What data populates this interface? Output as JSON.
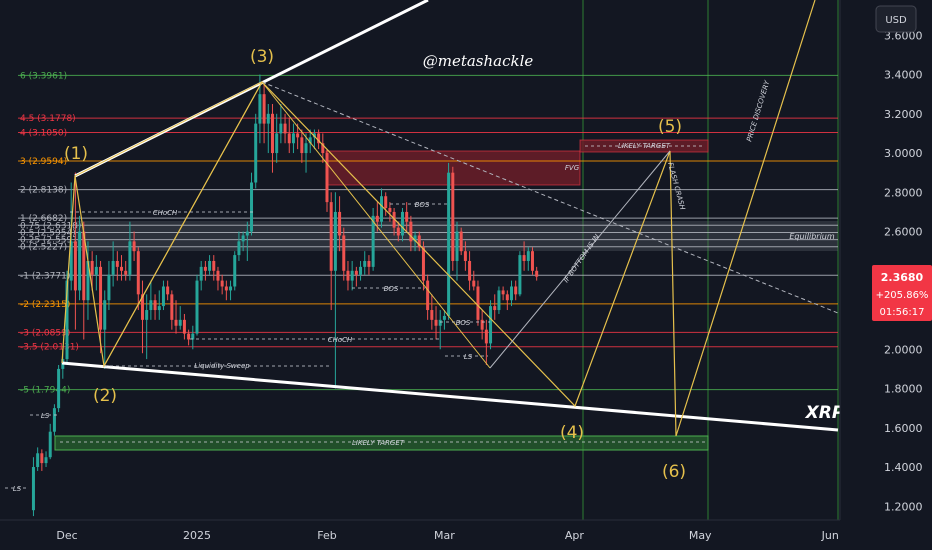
{
  "currency_button": "USD",
  "ticker": "XRP",
  "handle": "@metashackle",
  "price_tag": {
    "price": "2.3680",
    "change": "+205.86%",
    "countdown": "01:56:17"
  },
  "colors": {
    "background": "#131722",
    "bull": "#26a69a",
    "bear": "#ef5350",
    "fib_red": "#f23645",
    "fib_green": "#4caf50",
    "fib_white": "#b2b5be",
    "fib_orange": "#ff9800",
    "wave": "#e5c04c",
    "fvg_zone": "#6b1d28",
    "target_zone_green": "#2e7d32",
    "equilibrium_zone": "#5d606b"
  },
  "chart_data": {
    "type": "candlestick",
    "y_axis": {
      "min": 1.13,
      "max": 3.78,
      "ticks": [
        "1.2000",
        "1.4000",
        "1.6000",
        "1.8000",
        "2.0000",
        "2.2000",
        "2.4000",
        "2.6000",
        "2.8000",
        "3.0000",
        "3.2000",
        "3.4000",
        "3.6000"
      ]
    },
    "x_axis": {
      "labels": [
        "Dec",
        "2025",
        "Feb",
        "Mar",
        "Apr",
        "May",
        "Jun"
      ],
      "dates": [
        "2024-12-01",
        "2025-01-01",
        "2025-02-01",
        "2025-03-01",
        "2025-04-01",
        "2025-05-01",
        "2025-06-01"
      ]
    },
    "fib_levels": [
      {
        "label": "6 (3.3961)",
        "value": 3.3961,
        "color": "fib_green"
      },
      {
        "label": "4.5 (3.1778)",
        "value": 3.1778,
        "color": "fib_red"
      },
      {
        "label": "4 (3.1050)",
        "value": 3.105,
        "color": "fib_red"
      },
      {
        "label": "3 (2.9594)",
        "value": 2.9594,
        "color": "fib_orange"
      },
      {
        "label": "2 (2.8138)",
        "value": 2.8138,
        "color": "fib_white"
      },
      {
        "label": "1 (2.6682)",
        "value": 2.6682,
        "color": "fib_white"
      },
      {
        "label": "0.75 (2.6318)",
        "value": 2.6318,
        "color": "fib_white"
      },
      {
        "label": "0.5 (2.5954)",
        "value": 2.5954,
        "color": "fib_white"
      },
      {
        "label": "0.25 (2.5591)",
        "value": 2.5591,
        "color": "fib_white"
      },
      {
        "label": "0 (2.5227)",
        "value": 2.5227,
        "color": "fib_white"
      },
      {
        "label": "-1 (2.3771)",
        "value": 2.3771,
        "color": "fib_white"
      },
      {
        "label": "-2 (2.2315)",
        "value": 2.2315,
        "color": "fib_orange"
      },
      {
        "label": "-3 (2.0859)",
        "value": 2.0859,
        "color": "fib_red"
      },
      {
        "label": "-3.5 (2.0131)",
        "value": 2.0131,
        "color": "fib_red"
      },
      {
        "label": "-5 (1.7944)",
        "value": 1.7944,
        "color": "fib_green"
      }
    ],
    "wave_labels": [
      "(1)",
      "(2)",
      "(3)",
      "(4)",
      "(5)",
      "(6)"
    ],
    "annotations": [
      "CHoCH",
      "CHoCH",
      "Liquidity Sweep",
      "BOS",
      "BOS",
      "BOS",
      "LS",
      "LS",
      "LS",
      "FVG",
      "LIKELY TARGET",
      "LIKELY TARGET",
      "Equilibrium",
      "IF BOTTOM IS IN",
      "FLASH CRASH",
      "PRICE DISCOVERY"
    ],
    "candles": [
      {
        "d": "2024-11-23",
        "o": 1.18,
        "h": 1.45,
        "l": 1.15,
        "c": 1.4
      },
      {
        "d": "2024-11-24",
        "o": 1.4,
        "h": 1.5,
        "l": 1.38,
        "c": 1.47
      },
      {
        "d": "2024-11-25",
        "o": 1.47,
        "h": 1.49,
        "l": 1.38,
        "c": 1.42
      },
      {
        "d": "2024-11-26",
        "o": 1.42,
        "h": 1.48,
        "l": 1.4,
        "c": 1.45
      },
      {
        "d": "2024-11-27",
        "o": 1.45,
        "h": 1.62,
        "l": 1.44,
        "c": 1.58
      },
      {
        "d": "2024-11-28",
        "o": 1.58,
        "h": 1.72,
        "l": 1.56,
        "c": 1.7
      },
      {
        "d": "2024-11-29",
        "o": 1.7,
        "h": 1.92,
        "l": 1.68,
        "c": 1.9
      },
      {
        "d": "2024-11-30",
        "o": 1.9,
        "h": 2.0,
        "l": 1.85,
        "c": 1.95
      },
      {
        "d": "2024-12-01",
        "o": 1.95,
        "h": 2.4,
        "l": 1.92,
        "c": 2.35
      },
      {
        "d": "2024-12-02",
        "o": 2.35,
        "h": 2.85,
        "l": 2.3,
        "c": 2.55
      },
      {
        "d": "2024-12-03",
        "o": 2.55,
        "h": 2.9,
        "l": 2.1,
        "c": 2.3
      },
      {
        "d": "2024-12-04",
        "o": 2.3,
        "h": 2.68,
        "l": 2.25,
        "c": 2.6
      },
      {
        "d": "2024-12-05",
        "o": 2.6,
        "h": 2.65,
        "l": 2.05,
        "c": 2.25
      },
      {
        "d": "2024-12-06",
        "o": 2.25,
        "h": 2.55,
        "l": 2.15,
        "c": 2.45
      },
      {
        "d": "2024-12-07",
        "o": 2.45,
        "h": 2.5,
        "l": 2.3,
        "c": 2.38
      },
      {
        "d": "2024-12-08",
        "o": 2.38,
        "h": 2.48,
        "l": 2.3,
        "c": 2.42
      },
      {
        "d": "2024-12-09",
        "o": 2.42,
        "h": 2.45,
        "l": 1.98,
        "c": 2.1
      },
      {
        "d": "2024-12-10",
        "o": 2.1,
        "h": 2.3,
        "l": 1.9,
        "c": 2.25
      },
      {
        "d": "2024-12-11",
        "o": 2.25,
        "h": 2.45,
        "l": 2.2,
        "c": 2.38
      },
      {
        "d": "2024-12-12",
        "o": 2.38,
        "h": 2.55,
        "l": 2.32,
        "c": 2.45
      },
      {
        "d": "2024-12-13",
        "o": 2.45,
        "h": 2.5,
        "l": 2.35,
        "c": 2.42
      },
      {
        "d": "2024-12-14",
        "o": 2.42,
        "h": 2.48,
        "l": 2.35,
        "c": 2.4
      },
      {
        "d": "2024-12-15",
        "o": 2.4,
        "h": 2.45,
        "l": 2.35,
        "c": 2.38
      },
      {
        "d": "2024-12-16",
        "o": 2.38,
        "h": 2.65,
        "l": 2.35,
        "c": 2.55
      },
      {
        "d": "2024-12-17",
        "o": 2.55,
        "h": 2.6,
        "l": 2.45,
        "c": 2.5
      },
      {
        "d": "2024-12-18",
        "o": 2.5,
        "h": 2.52,
        "l": 2.2,
        "c": 2.28
      },
      {
        "d": "2024-12-19",
        "o": 2.28,
        "h": 2.35,
        "l": 1.98,
        "c": 2.15
      },
      {
        "d": "2024-12-20",
        "o": 2.15,
        "h": 2.28,
        "l": 1.95,
        "c": 2.2
      },
      {
        "d": "2024-12-21",
        "o": 2.2,
        "h": 2.35,
        "l": 2.15,
        "c": 2.25
      },
      {
        "d": "2024-12-22",
        "o": 2.25,
        "h": 2.28,
        "l": 2.15,
        "c": 2.2
      },
      {
        "d": "2024-12-23",
        "o": 2.2,
        "h": 2.3,
        "l": 2.15,
        "c": 2.22
      },
      {
        "d": "2024-12-24",
        "o": 2.22,
        "h": 2.35,
        "l": 2.2,
        "c": 2.32
      },
      {
        "d": "2024-12-25",
        "o": 2.32,
        "h": 2.35,
        "l": 2.25,
        "c": 2.28
      },
      {
        "d": "2024-12-26",
        "o": 2.28,
        "h": 2.3,
        "l": 2.1,
        "c": 2.15
      },
      {
        "d": "2024-12-27",
        "o": 2.15,
        "h": 2.25,
        "l": 2.08,
        "c": 2.12
      },
      {
        "d": "2024-12-28",
        "o": 2.12,
        "h": 2.22,
        "l": 2.1,
        "c": 2.15
      },
      {
        "d": "2024-12-29",
        "o": 2.15,
        "h": 2.18,
        "l": 2.05,
        "c": 2.08
      },
      {
        "d": "2024-12-30",
        "o": 2.08,
        "h": 2.1,
        "l": 2.02,
        "c": 2.05
      },
      {
        "d": "2024-12-31",
        "o": 2.05,
        "h": 2.12,
        "l": 2.0,
        "c": 2.08
      },
      {
        "d": "2025-01-01",
        "o": 2.08,
        "h": 2.38,
        "l": 2.07,
        "c": 2.35
      },
      {
        "d": "2025-01-02",
        "o": 2.35,
        "h": 2.45,
        "l": 2.3,
        "c": 2.42
      },
      {
        "d": "2025-01-03",
        "o": 2.42,
        "h": 2.45,
        "l": 2.35,
        "c": 2.4
      },
      {
        "d": "2025-01-04",
        "o": 2.4,
        "h": 2.48,
        "l": 2.38,
        "c": 2.45
      },
      {
        "d": "2025-01-05",
        "o": 2.45,
        "h": 2.48,
        "l": 2.35,
        "c": 2.4
      },
      {
        "d": "2025-01-06",
        "o": 2.4,
        "h": 2.42,
        "l": 2.3,
        "c": 2.35
      },
      {
        "d": "2025-01-07",
        "o": 2.35,
        "h": 2.38,
        "l": 2.28,
        "c": 2.32
      },
      {
        "d": "2025-01-08",
        "o": 2.32,
        "h": 2.35,
        "l": 2.25,
        "c": 2.3
      },
      {
        "d": "2025-01-09",
        "o": 2.3,
        "h": 2.35,
        "l": 2.25,
        "c": 2.32
      },
      {
        "d": "2025-01-10",
        "o": 2.32,
        "h": 2.5,
        "l": 2.3,
        "c": 2.48
      },
      {
        "d": "2025-01-11",
        "o": 2.48,
        "h": 2.6,
        "l": 2.45,
        "c": 2.55
      },
      {
        "d": "2025-01-12",
        "o": 2.55,
        "h": 2.6,
        "l": 2.5,
        "c": 2.58
      },
      {
        "d": "2025-01-13",
        "o": 2.58,
        "h": 2.65,
        "l": 2.45,
        "c": 2.6
      },
      {
        "d": "2025-01-14",
        "o": 2.6,
        "h": 2.9,
        "l": 2.58,
        "c": 2.85
      },
      {
        "d": "2025-01-15",
        "o": 2.85,
        "h": 3.2,
        "l": 2.82,
        "c": 3.15
      },
      {
        "d": "2025-01-16",
        "o": 3.15,
        "h": 3.4,
        "l": 3.05,
        "c": 3.3
      },
      {
        "d": "2025-01-17",
        "o": 3.3,
        "h": 3.35,
        "l": 3.05,
        "c": 3.15
      },
      {
        "d": "2025-01-18",
        "o": 3.15,
        "h": 3.25,
        "l": 3.0,
        "c": 3.2
      },
      {
        "d": "2025-01-19",
        "o": 3.2,
        "h": 3.25,
        "l": 2.9,
        "c": 3.0
      },
      {
        "d": "2025-01-20",
        "o": 3.0,
        "h": 3.2,
        "l": 2.95,
        "c": 3.1
      },
      {
        "d": "2025-01-21",
        "o": 3.1,
        "h": 3.25,
        "l": 3.05,
        "c": 3.15
      },
      {
        "d": "2025-01-22",
        "o": 3.15,
        "h": 3.2,
        "l": 3.05,
        "c": 3.1
      },
      {
        "d": "2025-01-23",
        "o": 3.1,
        "h": 3.18,
        "l": 3.0,
        "c": 3.05
      },
      {
        "d": "2025-01-24",
        "o": 3.05,
        "h": 3.15,
        "l": 3.0,
        "c": 3.1
      },
      {
        "d": "2025-01-25",
        "o": 3.1,
        "h": 3.15,
        "l": 3.02,
        "c": 3.08
      },
      {
        "d": "2025-01-26",
        "o": 3.08,
        "h": 3.12,
        "l": 2.95,
        "c": 3.0
      },
      {
        "d": "2025-01-27",
        "o": 3.0,
        "h": 3.1,
        "l": 2.9,
        "c": 3.05
      },
      {
        "d": "2025-01-28",
        "o": 3.05,
        "h": 3.12,
        "l": 3.0,
        "c": 3.08
      },
      {
        "d": "2025-01-29",
        "o": 3.08,
        "h": 3.12,
        "l": 3.02,
        "c": 3.1
      },
      {
        "d": "2025-01-30",
        "o": 3.1,
        "h": 3.12,
        "l": 3.02,
        "c": 3.05
      },
      {
        "d": "2025-01-31",
        "o": 3.05,
        "h": 3.1,
        "l": 2.95,
        "c": 3.0
      },
      {
        "d": "2025-02-01",
        "o": 3.0,
        "h": 3.02,
        "l": 2.7,
        "c": 2.75
      },
      {
        "d": "2025-02-02",
        "o": 2.75,
        "h": 2.8,
        "l": 2.2,
        "c": 2.4
      },
      {
        "d": "2025-02-03",
        "o": 2.4,
        "h": 2.8,
        "l": 1.8,
        "c": 2.7
      },
      {
        "d": "2025-02-04",
        "o": 2.7,
        "h": 2.78,
        "l": 2.5,
        "c": 2.58
      },
      {
        "d": "2025-02-05",
        "o": 2.58,
        "h": 2.62,
        "l": 2.35,
        "c": 2.4
      },
      {
        "d": "2025-02-06",
        "o": 2.4,
        "h": 2.45,
        "l": 2.3,
        "c": 2.35
      },
      {
        "d": "2025-02-07",
        "o": 2.35,
        "h": 2.45,
        "l": 2.3,
        "c": 2.4
      },
      {
        "d": "2025-02-08",
        "o": 2.4,
        "h": 2.42,
        "l": 2.32,
        "c": 2.38
      },
      {
        "d": "2025-02-09",
        "o": 2.38,
        "h": 2.45,
        "l": 2.35,
        "c": 2.42
      },
      {
        "d": "2025-02-10",
        "o": 2.42,
        "h": 2.5,
        "l": 2.38,
        "c": 2.45
      },
      {
        "d": "2025-02-11",
        "o": 2.45,
        "h": 2.48,
        "l": 2.38,
        "c": 2.42
      },
      {
        "d": "2025-02-12",
        "o": 2.42,
        "h": 2.72,
        "l": 2.4,
        "c": 2.68
      },
      {
        "d": "2025-02-13",
        "o": 2.68,
        "h": 2.75,
        "l": 2.6,
        "c": 2.65
      },
      {
        "d": "2025-02-14",
        "o": 2.65,
        "h": 2.82,
        "l": 2.62,
        "c": 2.78
      },
      {
        "d": "2025-02-15",
        "o": 2.78,
        "h": 2.8,
        "l": 2.68,
        "c": 2.72
      },
      {
        "d": "2025-02-16",
        "o": 2.72,
        "h": 2.75,
        "l": 2.65,
        "c": 2.7
      },
      {
        "d": "2025-02-17",
        "o": 2.7,
        "h": 2.72,
        "l": 2.58,
        "c": 2.62
      },
      {
        "d": "2025-02-18",
        "o": 2.62,
        "h": 2.65,
        "l": 2.55,
        "c": 2.58
      },
      {
        "d": "2025-02-19",
        "o": 2.58,
        "h": 2.72,
        "l": 2.55,
        "c": 2.7
      },
      {
        "d": "2025-02-20",
        "o": 2.7,
        "h": 2.75,
        "l": 2.6,
        "c": 2.65
      },
      {
        "d": "2025-02-21",
        "o": 2.65,
        "h": 2.68,
        "l": 2.5,
        "c": 2.55
      },
      {
        "d": "2025-02-22",
        "o": 2.55,
        "h": 2.6,
        "l": 2.5,
        "c": 2.58
      },
      {
        "d": "2025-02-23",
        "o": 2.58,
        "h": 2.6,
        "l": 2.5,
        "c": 2.52
      },
      {
        "d": "2025-02-24",
        "o": 2.52,
        "h": 2.55,
        "l": 2.3,
        "c": 2.35
      },
      {
        "d": "2025-02-25",
        "o": 2.35,
        "h": 2.38,
        "l": 2.15,
        "c": 2.2
      },
      {
        "d": "2025-02-26",
        "o": 2.2,
        "h": 2.28,
        "l": 2.1,
        "c": 2.15
      },
      {
        "d": "2025-02-27",
        "o": 2.15,
        "h": 2.22,
        "l": 2.05,
        "c": 2.12
      },
      {
        "d": "2025-02-28",
        "o": 2.12,
        "h": 2.2,
        "l": 2.0,
        "c": 2.15
      },
      {
        "d": "2025-03-01",
        "o": 2.15,
        "h": 2.2,
        "l": 2.1,
        "c": 2.17
      },
      {
        "d": "2025-03-02",
        "o": 2.17,
        "h": 2.95,
        "l": 2.15,
        "c": 2.9
      },
      {
        "d": "2025-03-03",
        "o": 2.9,
        "h": 2.93,
        "l": 2.4,
        "c": 2.45
      },
      {
        "d": "2025-03-04",
        "o": 2.45,
        "h": 2.65,
        "l": 2.35,
        "c": 2.6
      },
      {
        "d": "2025-03-05",
        "o": 2.6,
        "h": 2.62,
        "l": 2.48,
        "c": 2.5
      },
      {
        "d": "2025-03-06",
        "o": 2.5,
        "h": 2.55,
        "l": 2.4,
        "c": 2.45
      },
      {
        "d": "2025-03-07",
        "o": 2.45,
        "h": 2.5,
        "l": 2.3,
        "c": 2.35
      },
      {
        "d": "2025-03-08",
        "o": 2.35,
        "h": 2.4,
        "l": 2.3,
        "c": 2.32
      },
      {
        "d": "2025-03-09",
        "o": 2.32,
        "h": 2.35,
        "l": 2.12,
        "c": 2.15
      },
      {
        "d": "2025-03-10",
        "o": 2.15,
        "h": 2.2,
        "l": 2.05,
        "c": 2.1
      },
      {
        "d": "2025-03-11",
        "o": 2.1,
        "h": 2.15,
        "l": 1.92,
        "c": 2.03
      },
      {
        "d": "2025-03-12",
        "o": 2.03,
        "h": 2.25,
        "l": 2.0,
        "c": 2.22
      },
      {
        "d": "2025-03-13",
        "o": 2.22,
        "h": 2.28,
        "l": 2.15,
        "c": 2.2
      },
      {
        "d": "2025-03-14",
        "o": 2.2,
        "h": 2.32,
        "l": 2.18,
        "c": 2.3
      },
      {
        "d": "2025-03-15",
        "o": 2.3,
        "h": 2.32,
        "l": 2.25,
        "c": 2.28
      },
      {
        "d": "2025-03-16",
        "o": 2.28,
        "h": 2.3,
        "l": 2.2,
        "c": 2.25
      },
      {
        "d": "2025-03-17",
        "o": 2.25,
        "h": 2.35,
        "l": 2.22,
        "c": 2.32
      },
      {
        "d": "2025-03-18",
        "o": 2.32,
        "h": 2.35,
        "l": 2.25,
        "c": 2.28
      },
      {
        "d": "2025-03-19",
        "o": 2.28,
        "h": 2.5,
        "l": 2.27,
        "c": 2.48
      },
      {
        "d": "2025-03-20",
        "o": 2.48,
        "h": 2.55,
        "l": 2.4,
        "c": 2.45
      },
      {
        "d": "2025-03-21",
        "o": 2.45,
        "h": 2.52,
        "l": 2.4,
        "c": 2.5
      },
      {
        "d": "2025-03-22",
        "o": 2.5,
        "h": 2.52,
        "l": 2.38,
        "c": 2.4
      },
      {
        "d": "2025-03-23",
        "o": 2.4,
        "h": 2.42,
        "l": 2.35,
        "c": 2.37
      }
    ]
  }
}
